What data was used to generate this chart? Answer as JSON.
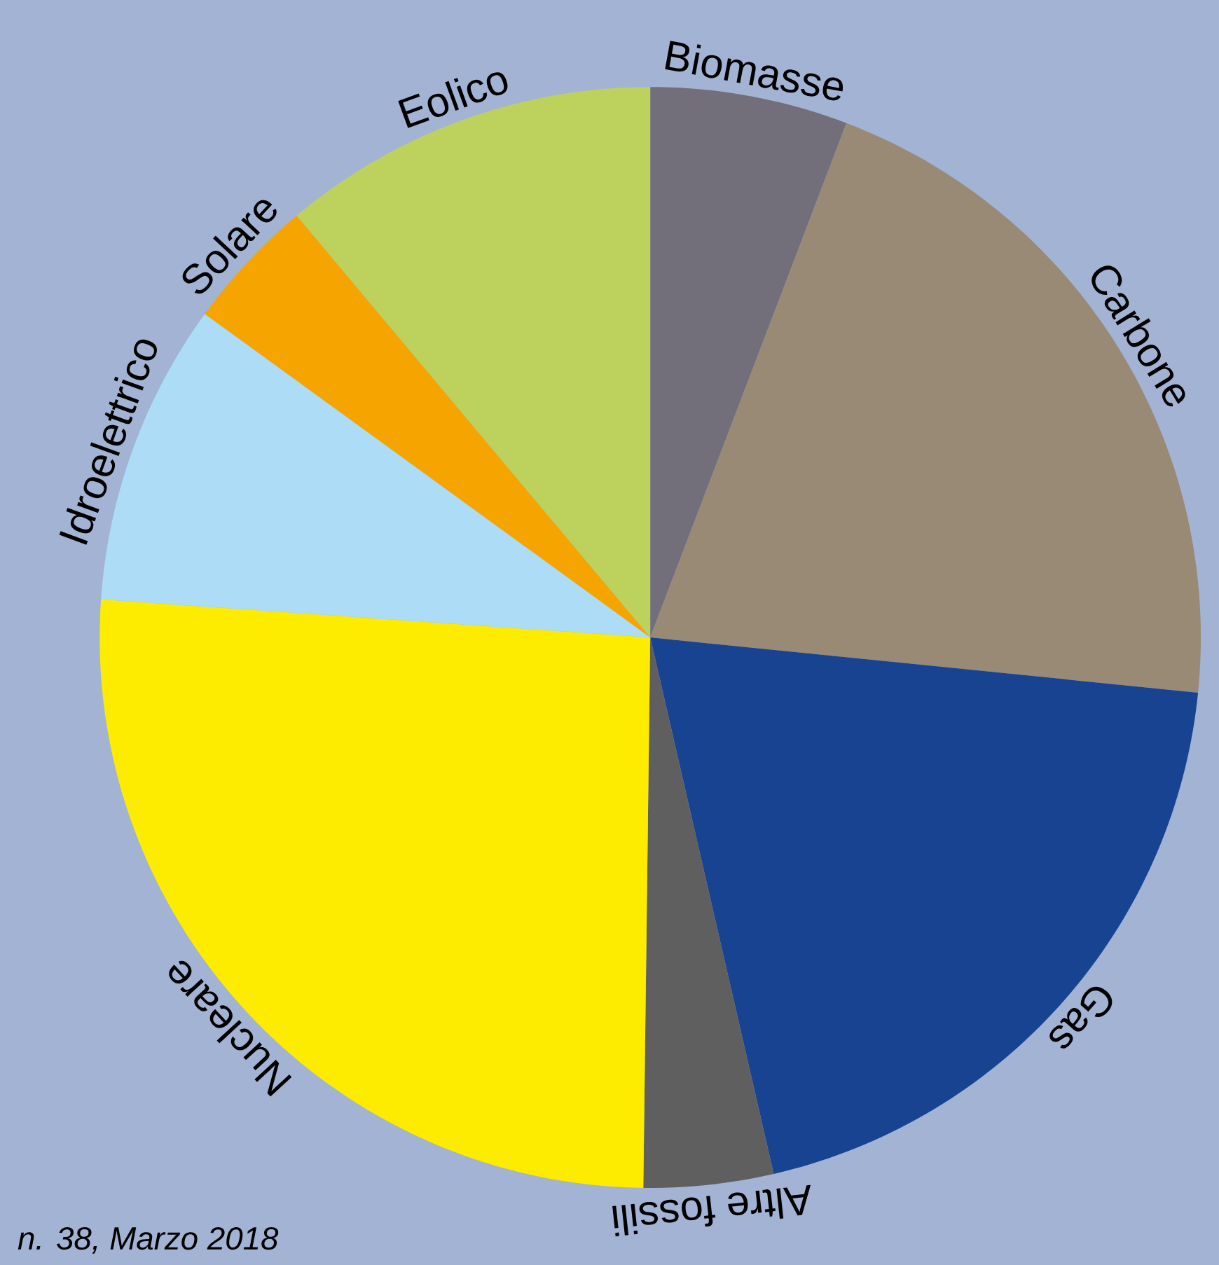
{
  "chart_data": {
    "type": "pie",
    "categories": [
      "Biomasse",
      "Carbone",
      "Gas",
      "Altre fossili",
      "Nucleare",
      "Idroelettrico",
      "Solare",
      "Eolico"
    ],
    "values": [
      5.8,
      20.8,
      19.8,
      3.8,
      25.9,
      8.9,
      3.9,
      11.1
    ],
    "colors": [
      "#736f7a",
      "#988a74",
      "#174391",
      "#5f5f5f",
      "#fdeb00",
      "#addcf7",
      "#f6a500",
      "#bcd25d"
    ],
    "annotations": [
      "n. 38, Marzo 2018"
    ]
  }
}
